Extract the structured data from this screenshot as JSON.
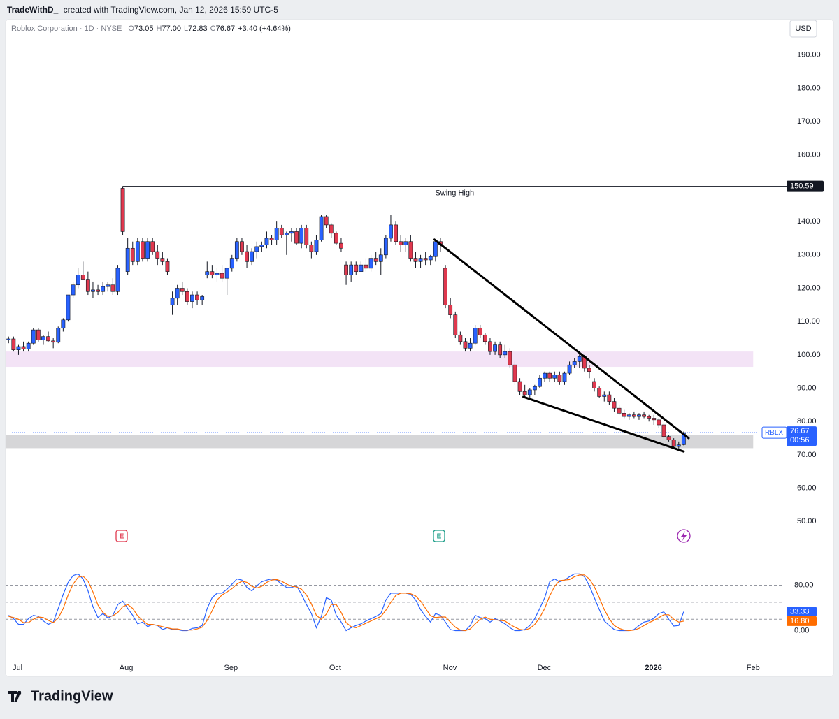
{
  "header": {
    "author": "TradeWithD_",
    "caption": "created with TradingView.com, Jan 12, 2026 15:59 UTC-5"
  },
  "footer": {
    "logo": "TradingView"
  },
  "events": [
    {
      "label": "E"
    },
    {
      "label": "E"
    }
  ],
  "chart_data": [
    {
      "type": "candlestick",
      "title": "Roblox Corporation · 1D · NYSE",
      "ohlc_legend": [
        {
          "key": "O",
          "value": "73.05"
        },
        {
          "key": "H",
          "value": "77.00"
        },
        {
          "key": "L",
          "value": "72.83"
        },
        {
          "key": "C",
          "value": "76.67"
        }
      ],
      "change": "+3.40 (+4.64%)",
      "currency": "USD",
      "up_color": "#2962ff",
      "down_color": "#e0384e",
      "wick_color": "#131722",
      "candles": [
        [
          104.5,
          105.5,
          103.5,
          104.8
        ],
        [
          104.8,
          105.5,
          101,
          101.5
        ],
        [
          101.5,
          103,
          100,
          102.5
        ],
        [
          102.5,
          104,
          101,
          101.8
        ],
        [
          101.8,
          104,
          101,
          103.5
        ],
        [
          103.5,
          108,
          103,
          107.5
        ],
        [
          107.5,
          108,
          104,
          104.5
        ],
        [
          104.5,
          106,
          103,
          105.5
        ],
        [
          105.5,
          107,
          104,
          104.2
        ],
        [
          104.2,
          105,
          102,
          103.8
        ],
        [
          103.8,
          108.5,
          103.5,
          108
        ],
        [
          108,
          111,
          107,
          110.5
        ],
        [
          110.5,
          118,
          110,
          118
        ],
        [
          118,
          122,
          117,
          121
        ],
        [
          121,
          126,
          120,
          124
        ],
        [
          124,
          128,
          123,
          122.5
        ],
        [
          122.5,
          125,
          118,
          119
        ],
        [
          119,
          122,
          117,
          119.5
        ],
        [
          119.5,
          121,
          118,
          119
        ],
        [
          119,
          122,
          118,
          120.5
        ],
        [
          120.5,
          122,
          119,
          121
        ],
        [
          121,
          123,
          118,
          119
        ],
        [
          119,
          127,
          118,
          126
        ],
        [
          150,
          150.6,
          136,
          137
        ],
        [
          125,
          135,
          124,
          132
        ],
        [
          132,
          134,
          127,
          128
        ],
        [
          128,
          135,
          127,
          134
        ],
        [
          134,
          135,
          128,
          129
        ],
        [
          129,
          135,
          128,
          134
        ],
        [
          134,
          135,
          130,
          131
        ],
        [
          131,
          133,
          127,
          129
        ],
        [
          129,
          131,
          127,
          128
        ],
        [
          128,
          129,
          124,
          125
        ],
        [
          115,
          119,
          112,
          117
        ],
        [
          117,
          121,
          115,
          120
        ],
        [
          120,
          122,
          118,
          119
        ],
        [
          119,
          120,
          115,
          116
        ],
        [
          116,
          119,
          114,
          118
        ],
        [
          118,
          119,
          115,
          116.5
        ],
        [
          116.5,
          118,
          115,
          117.5
        ],
        [
          124,
          128,
          123,
          125
        ],
        [
          125,
          127,
          123,
          124
        ],
        [
          124,
          126,
          122,
          124.5
        ],
        [
          124.5,
          127,
          122,
          123
        ],
        [
          123,
          126,
          118,
          126
        ],
        [
          126,
          130,
          125,
          129
        ],
        [
          129,
          135,
          128,
          134
        ],
        [
          134,
          135,
          130,
          131
        ],
        [
          131,
          133,
          126,
          128
        ],
        [
          128,
          132,
          127,
          131
        ],
        [
          131,
          134,
          129,
          132.5
        ],
        [
          132.5,
          134,
          131,
          133
        ],
        [
          133,
          137,
          132,
          135
        ],
        [
          135,
          136,
          133,
          134.5
        ],
        [
          134.5,
          140,
          133,
          138
        ],
        [
          138,
          139,
          135,
          136
        ],
        [
          136,
          137,
          130,
          136.5
        ],
        [
          136.5,
          138,
          134,
          137
        ],
        [
          137,
          138,
          133,
          133.5
        ],
        [
          133.5,
          139,
          132,
          138
        ],
        [
          138,
          139,
          132,
          133
        ],
        [
          133,
          134,
          129,
          131
        ],
        [
          131,
          136,
          130,
          134.5
        ],
        [
          134.5,
          142,
          134,
          141.5
        ],
        [
          141.5,
          142,
          138,
          139
        ],
        [
          139,
          139.5,
          135,
          136.5
        ],
        [
          136.5,
          137,
          133,
          133.5
        ],
        [
          133.5,
          135,
          131,
          132
        ],
        [
          127,
          128,
          121,
          124
        ],
        [
          124,
          128,
          122,
          127
        ],
        [
          127,
          128,
          124,
          125
        ],
        [
          125,
          128,
          125,
          127
        ],
        [
          127,
          129,
          125,
          126
        ],
        [
          126,
          130,
          125,
          129
        ],
        [
          129,
          131,
          127,
          128
        ],
        [
          128,
          132,
          124,
          130
        ],
        [
          130,
          136,
          129,
          135
        ],
        [
          135,
          142,
          134,
          139
        ],
        [
          139,
          140,
          133,
          134
        ],
        [
          134,
          136,
          131,
          133
        ],
        [
          133,
          135,
          131,
          134
        ],
        [
          134,
          136,
          128,
          129
        ],
        [
          129,
          131,
          126,
          128
        ],
        [
          128,
          130,
          126,
          129
        ],
        [
          129,
          131,
          127,
          128.5
        ],
        [
          128.5,
          130,
          127,
          129.5
        ],
        [
          129.5,
          134,
          128,
          134
        ],
        [
          134,
          135,
          131,
          133
        ],
        [
          126,
          127,
          114,
          115
        ],
        [
          115,
          117,
          111,
          112
        ],
        [
          112,
          113,
          105,
          106
        ],
        [
          106,
          107,
          103,
          104
        ],
        [
          104,
          105,
          101,
          102
        ],
        [
          102,
          105,
          101,
          103.5
        ],
        [
          103.5,
          109,
          103,
          108
        ],
        [
          108,
          109,
          105,
          106
        ],
        [
          106,
          106.5,
          103,
          104
        ],
        [
          104,
          105,
          100,
          101
        ],
        [
          101,
          104,
          100,
          103
        ],
        [
          103,
          104,
          99,
          100
        ],
        [
          100,
          103,
          99,
          101
        ],
        [
          101,
          102,
          96,
          97
        ],
        [
          97,
          98,
          91,
          92
        ],
        [
          92,
          93,
          88,
          89
        ],
        [
          89,
          91,
          87,
          88
        ],
        [
          88,
          90,
          86.5,
          89.5
        ],
        [
          89.5,
          91,
          88,
          90.5
        ],
        [
          90.5,
          94,
          90,
          93
        ],
        [
          93,
          95,
          92,
          94.5
        ],
        [
          94.5,
          95,
          92,
          93
        ],
        [
          93,
          95,
          92,
          94
        ],
        [
          94,
          95,
          91,
          92
        ],
        [
          92,
          95,
          91,
          94.5
        ],
        [
          94.5,
          98,
          94,
          97
        ],
        [
          97,
          99,
          96,
          98
        ],
        [
          98,
          101,
          96,
          99.5
        ],
        [
          99.5,
          100,
          95,
          96
        ],
        [
          96,
          97,
          93,
          95
        ],
        [
          92,
          93,
          89,
          90
        ],
        [
          90,
          90.5,
          87,
          87.5
        ],
        [
          87.5,
          89,
          86,
          88
        ],
        [
          88,
          89,
          85,
          86
        ],
        [
          86,
          87,
          83,
          84
        ],
        [
          84,
          85,
          82,
          82.5
        ],
        [
          82.5,
          83.5,
          81,
          81.5
        ],
        [
          81.5,
          82.5,
          80.5,
          82
        ],
        [
          82,
          83,
          81,
          81.5
        ],
        [
          81.5,
          82.5,
          80.5,
          82
        ],
        [
          82,
          83,
          81,
          81.5
        ],
        [
          81.5,
          82,
          80,
          81
        ],
        [
          81,
          82,
          79,
          80.5
        ],
        [
          80.5,
          81,
          78,
          79
        ],
        [
          79,
          79.5,
          75,
          75.5
        ],
        [
          75.5,
          76,
          74,
          74.5
        ],
        [
          74.5,
          75,
          72,
          72.5
        ],
        [
          72.5,
          74,
          71.5,
          73
        ],
        [
          73.05,
          77,
          72.83,
          76.67
        ]
      ],
      "xlim": [
        -0.6,
        156.3
      ],
      "xticks": [
        {
          "value": 1.8,
          "label": "Jul"
        },
        {
          "value": 23.7,
          "label": "Aug"
        },
        {
          "value": 44.8,
          "label": "Sep"
        },
        {
          "value": 65.8,
          "label": "Oct"
        },
        {
          "value": 88.9,
          "label": "Nov"
        },
        {
          "value": 107.9,
          "label": "Dec"
        },
        {
          "value": 129.9,
          "label": "2026",
          "bold": true
        },
        {
          "value": 150,
          "label": "Feb"
        }
      ],
      "ylim": [
        40,
        200
      ],
      "yticks": [
        {
          "value": 190,
          "label": "190.00"
        },
        {
          "value": 180,
          "label": "180.00"
        },
        {
          "value": 170,
          "label": "170.00"
        },
        {
          "value": 160,
          "label": "160.00"
        },
        {
          "value": 150,
          "label": "150.00"
        },
        {
          "value": 140,
          "label": "140.00"
        },
        {
          "value": 130,
          "label": "130.00"
        },
        {
          "value": 120,
          "label": "120.00"
        },
        {
          "value": 110,
          "label": "110.00"
        },
        {
          "value": 100,
          "label": "100.00"
        },
        {
          "value": 90,
          "label": "90.00"
        },
        {
          "value": 80,
          "label": "80.00"
        },
        {
          "value": 70,
          "label": "70.00"
        },
        {
          "value": 60,
          "label": "60.00"
        },
        {
          "value": 50,
          "label": "50.00"
        }
      ],
      "swing_high": {
        "label": "Swing High",
        "value": 150.59,
        "start": 23
      },
      "trendlines": [
        {
          "points": [
            [
              85.8,
              134.6
            ],
            [
              137,
              75
            ]
          ]
        },
        {
          "points": [
            [
              103.7,
              87.4
            ],
            [
              136,
              71
            ]
          ]
        }
      ],
      "zones": [
        {
          "xlim": [
            -0.6,
            150
          ],
          "ylim": [
            96.4,
            101
          ],
          "color": "#f3e3f6"
        },
        {
          "xlim": [
            -0.6,
            150
          ],
          "ylim": [
            72,
            76
          ],
          "color": "#d6d6d8"
        }
      ],
      "last": {
        "symbol": "RBLX",
        "value": 76.67,
        "countdown": "00:56",
        "color": "#2962ff"
      }
    },
    {
      "type": "line",
      "xlim": [
        -0.6,
        156.3
      ],
      "ylim": [
        -40,
        120
      ],
      "yticks": [
        {
          "value": 80,
          "label": "80.00"
        },
        {
          "value": 0,
          "label": "0.00"
        }
      ],
      "bands": [
        80,
        50,
        20
      ],
      "series": [
        {
          "color": "#2962ff",
          "last_label": "33.33",
          "values": [
            27,
            21,
            11,
            11,
            21,
            27,
            25,
            17,
            11,
            15,
            39,
            64,
            85,
            97,
            100,
            91,
            70,
            42,
            23,
            30,
            22,
            27,
            46,
            52,
            39,
            27,
            12,
            15,
            7,
            11,
            9,
            2,
            5,
            2,
            2,
            0,
            0,
            4,
            5,
            9,
            39,
            58,
            66,
            66,
            73,
            82,
            91,
            89,
            76,
            70,
            79,
            86,
            89,
            91,
            89,
            82,
            76,
            76,
            79,
            64,
            46,
            30,
            5,
            25,
            58,
            54,
            27,
            15,
            0,
            5,
            9,
            12,
            17,
            21,
            25,
            30,
            54,
            66,
            66,
            66,
            66,
            64,
            54,
            37,
            25,
            15,
            30,
            27,
            15,
            2,
            0,
            0,
            0,
            9,
            27,
            23,
            21,
            15,
            21,
            17,
            12,
            5,
            0,
            0,
            2,
            9,
            21,
            39,
            58,
            86,
            91,
            86,
            89,
            95,
            100,
            100,
            95,
            79,
            58,
            37,
            17,
            9,
            2,
            0,
            0,
            0,
            2,
            9,
            15,
            17,
            22,
            30,
            33,
            20,
            8,
            9,
            33.33
          ]
        },
        {
          "color": "#ff6d00",
          "last_label": "16.80",
          "values": [
            25,
            23,
            20,
            14,
            14,
            20,
            24,
            23,
            18,
            14,
            22,
            39,
            63,
            82,
            94,
            96,
            87,
            68,
            45,
            32,
            25,
            26,
            32,
            42,
            46,
            39,
            26,
            18,
            11,
            11,
            9,
            7,
            5,
            3,
            3,
            1,
            1,
            1,
            3,
            6,
            18,
            35,
            54,
            63,
            68,
            74,
            82,
            87,
            85,
            78,
            75,
            78,
            85,
            89,
            90,
            87,
            82,
            78,
            77,
            73,
            63,
            47,
            27,
            20,
            29,
            46,
            46,
            32,
            14,
            7,
            5,
            9,
            13,
            17,
            21,
            25,
            36,
            50,
            62,
            66,
            66,
            65,
            61,
            52,
            39,
            26,
            23,
            24,
            24,
            15,
            6,
            1,
            0,
            3,
            12,
            20,
            24,
            20,
            19,
            18,
            17,
            11,
            6,
            2,
            1,
            4,
            11,
            23,
            39,
            61,
            78,
            88,
            89,
            90,
            95,
            98,
            98,
            91,
            77,
            58,
            37,
            21,
            9,
            4,
            1,
            0,
            1,
            4,
            9,
            14,
            18,
            23,
            28,
            28,
            20,
            15,
            16.8
          ]
        }
      ]
    }
  ]
}
